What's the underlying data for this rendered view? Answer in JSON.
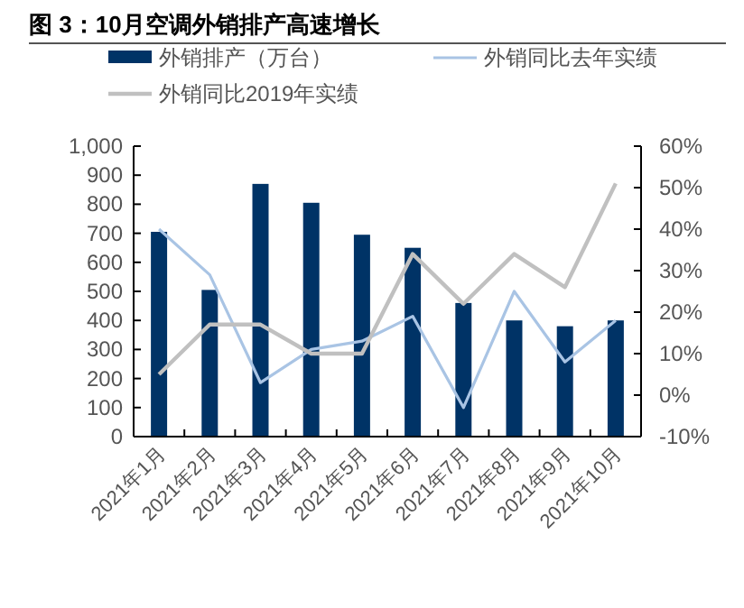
{
  "chart_data": {
    "type": "bar",
    "title": "图 3：10月空调外销排产高速增长",
    "categories": [
      "2021年1月",
      "2021年2月",
      "2021年3月",
      "2021年4月",
      "2021年5月",
      "2021年6月",
      "2021年7月",
      "2021年8月",
      "2021年9月",
      "2021年10月"
    ],
    "series": [
      {
        "name": "外销排产（万台）",
        "color": "#003366",
        "values": [
          705,
          505,
          870,
          805,
          695,
          650,
          460,
          400,
          380,
          400
        ]
      },
      {
        "name": "外销同比去年实绩",
        "type": "line",
        "axis": "y2",
        "color": "#a9c4e4",
        "values": [
          40,
          29,
          3,
          11,
          13,
          19,
          -3,
          25,
          8,
          18
        ]
      },
      {
        "name": "外销同比2019年实绩",
        "type": "line",
        "axis": "y2",
        "color": "#c0c0c0",
        "values": [
          5,
          17,
          17,
          10,
          10,
          34,
          22,
          34,
          26,
          51
        ]
      }
    ],
    "ylim": [
      0,
      1000
    ],
    "yticks": [
      0,
      100,
      200,
      300,
      400,
      500,
      600,
      700,
      800,
      900,
      {
        "value": 1000,
        "label": "1,000"
      }
    ],
    "y2lim": [
      -10,
      60
    ],
    "y2ticks": [
      {
        "value": -10,
        "label": "-10%"
      },
      {
        "value": 0,
        "label": "0%"
      },
      {
        "value": 10,
        "label": "10%"
      },
      {
        "value": 20,
        "label": "20%"
      },
      {
        "value": 30,
        "label": "30%"
      },
      {
        "value": 40,
        "label": "40%"
      },
      {
        "value": 50,
        "label": "50%"
      },
      {
        "value": 60,
        "label": "60%"
      }
    ],
    "legend": "top",
    "grid": false,
    "marker": "none"
  }
}
